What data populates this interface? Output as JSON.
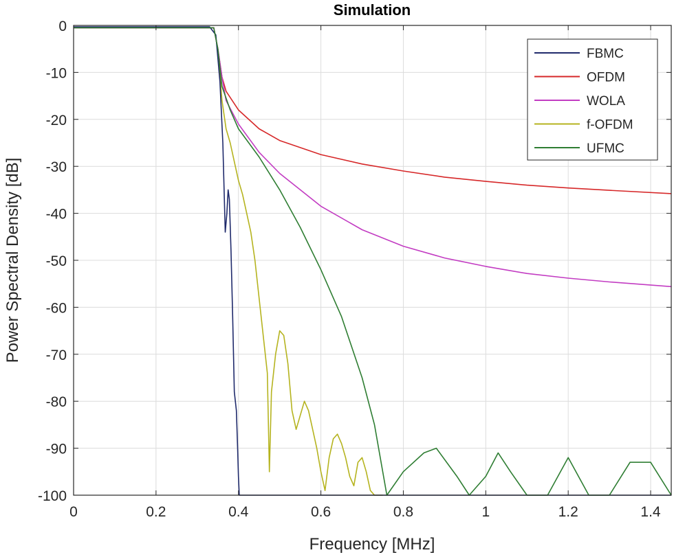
{
  "chart_data": {
    "type": "line",
    "title": "Simulation",
    "xlabel": "Frequency [MHz]",
    "ylabel": "Power Spectral Density [dB]",
    "xlim": [
      0,
      1.45
    ],
    "ylim": [
      -100,
      0
    ],
    "xticks": [
      0,
      0.2,
      0.4,
      0.6,
      0.8,
      1,
      1.2,
      1.4
    ],
    "xtick_labels": [
      "0",
      "0.2",
      "0.4",
      "0.6",
      "0.8",
      "1",
      "1.2",
      "1.4"
    ],
    "yticks": [
      0,
      -10,
      -20,
      -30,
      -40,
      -50,
      -60,
      -70,
      -80,
      -90,
      -100
    ],
    "ytick_labels": [
      "0",
      "-10",
      "-20",
      "-30",
      "-40",
      "-50",
      "-60",
      "-70",
      "-80",
      "-90",
      "-100"
    ],
    "grid": true,
    "legend_position": "top-right",
    "series": [
      {
        "name": "FBMC",
        "color": "#1f2a6b",
        "x": [
          0,
          0.33,
          0.345,
          0.355,
          0.362,
          0.368,
          0.372,
          0.375,
          0.378,
          0.382,
          0.386,
          0.39,
          0.395,
          0.398,
          0.4,
          0.402,
          0.405,
          1.45
        ],
        "y": [
          -0.3,
          -0.3,
          -2,
          -12,
          -25,
          -44,
          -40,
          -35,
          -37,
          -48,
          -62,
          -78,
          -82,
          -90,
          -96,
          -100,
          -100,
          -100
        ]
      },
      {
        "name": "OFDM",
        "color": "#d62728",
        "x": [
          0,
          0.34,
          0.35,
          0.36,
          0.37,
          0.4,
          0.45,
          0.5,
          0.6,
          0.7,
          0.8,
          0.9,
          1.0,
          1.1,
          1.2,
          1.3,
          1.45
        ],
        "y": [
          -0.5,
          -0.5,
          -5,
          -11,
          -14,
          -18,
          -22,
          -24.5,
          -27.5,
          -29.5,
          -31,
          -32.3,
          -33.2,
          -34,
          -34.6,
          -35.1,
          -35.8
        ]
      },
      {
        "name": "WOLA",
        "color": "#c23bc2",
        "x": [
          0,
          0.34,
          0.35,
          0.36,
          0.37,
          0.4,
          0.45,
          0.5,
          0.6,
          0.7,
          0.8,
          0.9,
          1.0,
          1.1,
          1.2,
          1.3,
          1.45
        ],
        "y": [
          -0.5,
          -0.5,
          -5,
          -11,
          -16,
          -21,
          -27,
          -31.5,
          -38.5,
          -43.5,
          -47,
          -49.5,
          -51.3,
          -52.8,
          -53.8,
          -54.6,
          -55.6
        ]
      },
      {
        "name": "f-OFDM",
        "color": "#b5b31e",
        "x": [
          0,
          0.34,
          0.35,
          0.36,
          0.37,
          0.38,
          0.39,
          0.4,
          0.41,
          0.42,
          0.43,
          0.44,
          0.45,
          0.46,
          0.47,
          0.475,
          0.48,
          0.49,
          0.5,
          0.51,
          0.52,
          0.53,
          0.54,
          0.55,
          0.56,
          0.57,
          0.58,
          0.59,
          0.6,
          0.61,
          0.62,
          0.63,
          0.64,
          0.65,
          0.66,
          0.67,
          0.68,
          0.69,
          0.7,
          0.71,
          0.72,
          0.73,
          0.74,
          0.75
        ],
        "y": [
          -0.5,
          -0.5,
          -5,
          -16,
          -22,
          -25,
          -29,
          -33,
          -36,
          -40,
          -44,
          -50,
          -58,
          -66,
          -74,
          -95,
          -78,
          -70,
          -65,
          -66,
          -72,
          -82,
          -86,
          -83,
          -80,
          -82,
          -86,
          -90,
          -95,
          -99,
          -92,
          -88,
          -87,
          -89,
          -92,
          -96,
          -98,
          -93,
          -92,
          -95,
          -99,
          -100,
          -100,
          -100
        ]
      },
      {
        "name": "UFMC",
        "color": "#2e7d32",
        "x": [
          0,
          0.34,
          0.35,
          0.36,
          0.38,
          0.4,
          0.45,
          0.5,
          0.55,
          0.6,
          0.65,
          0.7,
          0.73,
          0.76,
          0.8,
          0.85,
          0.88,
          0.93,
          0.96,
          1.0,
          1.03,
          1.06,
          1.1,
          1.15,
          1.2,
          1.25,
          1.3,
          1.35,
          1.4,
          1.45
        ],
        "y": [
          -0.5,
          -0.5,
          -5,
          -13,
          -18,
          -22,
          -28,
          -35,
          -43,
          -52,
          -62,
          -75,
          -85,
          -100,
          -95,
          -91,
          -90,
          -96,
          -100,
          -96,
          -91,
          -95,
          -100,
          -100,
          -92,
          -100,
          -100,
          -93,
          -93,
          -100
        ]
      }
    ]
  }
}
